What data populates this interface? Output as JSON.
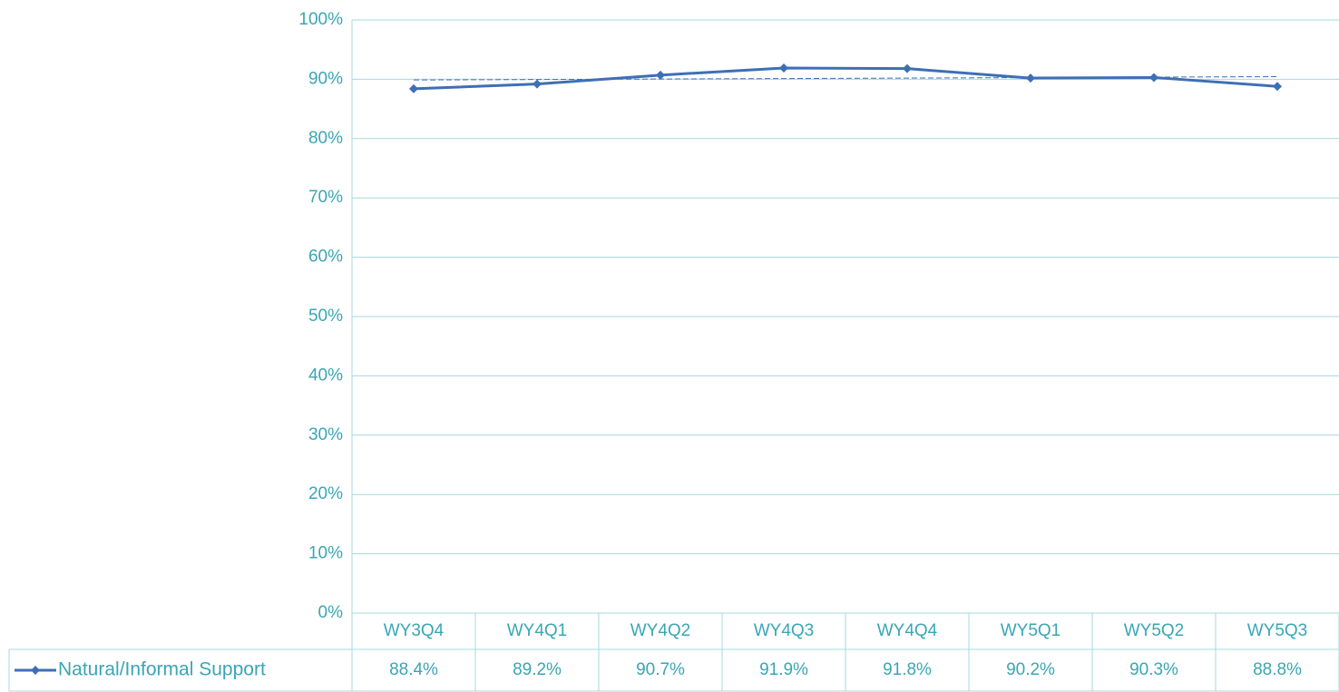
{
  "chart_data": {
    "type": "line",
    "categories": [
      "WY3Q4",
      "WY4Q1",
      "WY4Q2",
      "WY4Q3",
      "WY4Q4",
      "WY5Q1",
      "WY5Q2",
      "WY5Q3"
    ],
    "series": [
      {
        "name": "Natural/Informal Support",
        "color": "#3e6fb6",
        "values": [
          88.4,
          89.2,
          90.7,
          91.9,
          91.8,
          90.2,
          90.3,
          88.8
        ],
        "value_labels": [
          "88.4%",
          "89.2%",
          "90.7%",
          "91.9%",
          "91.8%",
          "90.2%",
          "90.3%",
          "88.8%"
        ]
      }
    ],
    "ylim": [
      0,
      100
    ],
    "yticks": [
      {
        "value": 0,
        "label": "0%"
      },
      {
        "value": 10,
        "label": "10%"
      },
      {
        "value": 20,
        "label": "20%"
      },
      {
        "value": 30,
        "label": "30%"
      },
      {
        "value": 40,
        "label": "40%"
      },
      {
        "value": 50,
        "label": "50%"
      },
      {
        "value": 60,
        "label": "60%"
      },
      {
        "value": 70,
        "label": "70%"
      },
      {
        "value": 80,
        "label": "80%"
      },
      {
        "value": 90,
        "label": "90%"
      },
      {
        "value": 100,
        "label": "100%"
      }
    ],
    "grid": true,
    "trendline": true,
    "data_table": true
  }
}
